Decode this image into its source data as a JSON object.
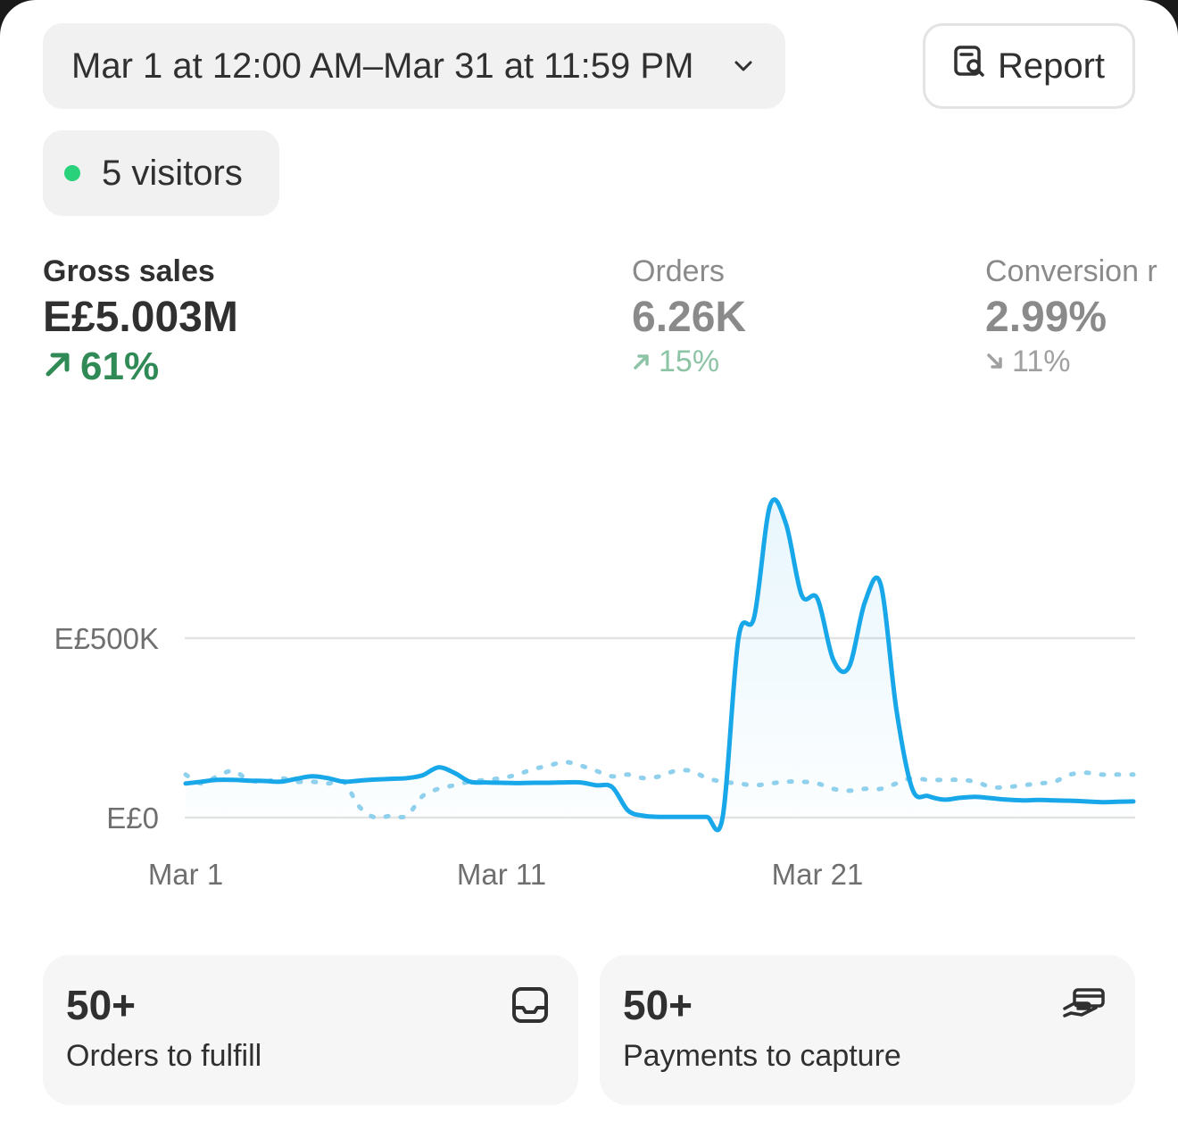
{
  "header": {
    "date_range": "Mar 1 at 12:00 AM–Mar 31 at 11:59 PM",
    "report_label": "Report"
  },
  "live": {
    "visitors_label": "5 visitors",
    "dot_color": "#29d17a"
  },
  "metrics": [
    {
      "label": "Gross sales",
      "value": "E£5.003M",
      "change": "61%",
      "direction": "up"
    },
    {
      "label": "Orders",
      "value": "6.26K",
      "change": "15%",
      "direction": "up"
    },
    {
      "label": "Conversion r",
      "value": "2.99%",
      "change": "11%",
      "direction": "down"
    }
  ],
  "chart_data": {
    "type": "line",
    "x_ticks": [
      "Mar 1",
      "Mar 11",
      "Mar 21"
    ],
    "y_ticks": [
      "E£0",
      "E£500K"
    ],
    "ylim": [
      0,
      1000000
    ],
    "grid": true,
    "line_color": "#18a7e8",
    "series": [
      {
        "style": "solid",
        "x": [
          1,
          1.5,
          2,
          2.5,
          3,
          3.5,
          4,
          4.5,
          5,
          5.5,
          6,
          6.5,
          7,
          7.5,
          8,
          8.5,
          9,
          9.5,
          10,
          10.5,
          11,
          11.5,
          12,
          12.5,
          13,
          13.5,
          14,
          14.5,
          15,
          15.5,
          16,
          16.5,
          17,
          17.5,
          18,
          18.5,
          19,
          19.5,
          20,
          20.5,
          21,
          21.5,
          22,
          22.5,
          23,
          23.5,
          24,
          24.5,
          25,
          25.5,
          26,
          26.5,
          27,
          27.5,
          28,
          28.5,
          29,
          29.5,
          30,
          30.5,
          31
        ],
        "values": [
          95000,
          100000,
          105000,
          105000,
          103000,
          102000,
          100000,
          108000,
          115000,
          110000,
          100000,
          103000,
          106000,
          108000,
          110000,
          118000,
          140000,
          125000,
          100000,
          98000,
          97000,
          96000,
          97000,
          97000,
          98000,
          98000,
          90000,
          85000,
          20000,
          5000,
          2000,
          2000,
          2000,
          2000,
          2000,
          500000,
          560000,
          870000,
          820000,
          620000,
          610000,
          440000,
          420000,
          600000,
          650000,
          300000,
          80000,
          60000,
          50000,
          55000,
          58000,
          54000,
          50000,
          48000,
          49000,
          48000,
          47000,
          45000,
          43000,
          44000,
          45000
        ]
      },
      {
        "style": "dashed",
        "x": [
          1,
          1.5,
          2,
          2.5,
          3,
          3.5,
          4,
          4.5,
          5,
          5.5,
          6,
          6.5,
          7,
          7.5,
          8,
          8.5,
          9,
          9.5,
          10,
          10.5,
          11,
          11.5,
          12,
          12.5,
          13,
          13.5,
          14,
          14.5,
          15,
          15.5,
          16,
          16.5,
          17,
          17.5,
          18,
          18.5,
          19,
          19.5,
          20,
          20.5,
          21,
          21.5,
          22,
          22.5,
          23,
          23.5,
          24,
          24.5,
          25,
          25.5,
          26,
          26.5,
          27,
          27.5,
          28,
          28.5,
          29,
          29.5,
          30,
          30.5,
          31
        ],
        "values": [
          120000,
          95000,
          115000,
          130000,
          105000,
          100000,
          110000,
          100000,
          100000,
          95000,
          100000,
          30000,
          0,
          5000,
          5000,
          60000,
          80000,
          90000,
          100000,
          105000,
          110000,
          120000,
          135000,
          145000,
          155000,
          145000,
          130000,
          115000,
          120000,
          110000,
          115000,
          130000,
          130000,
          110000,
          100000,
          95000,
          90000,
          95000,
          100000,
          100000,
          95000,
          80000,
          75000,
          80000,
          80000,
          95000,
          110000,
          105000,
          105000,
          105000,
          100000,
          85000,
          85000,
          90000,
          95000,
          100000,
          120000,
          125000,
          120000,
          120000,
          120000
        ]
      }
    ]
  },
  "tasks": [
    {
      "count": "50+",
      "label": "Orders to fulfill",
      "icon": "inbox-icon"
    },
    {
      "count": "50+",
      "label": "Payments to capture",
      "icon": "hand-card-icon"
    }
  ]
}
